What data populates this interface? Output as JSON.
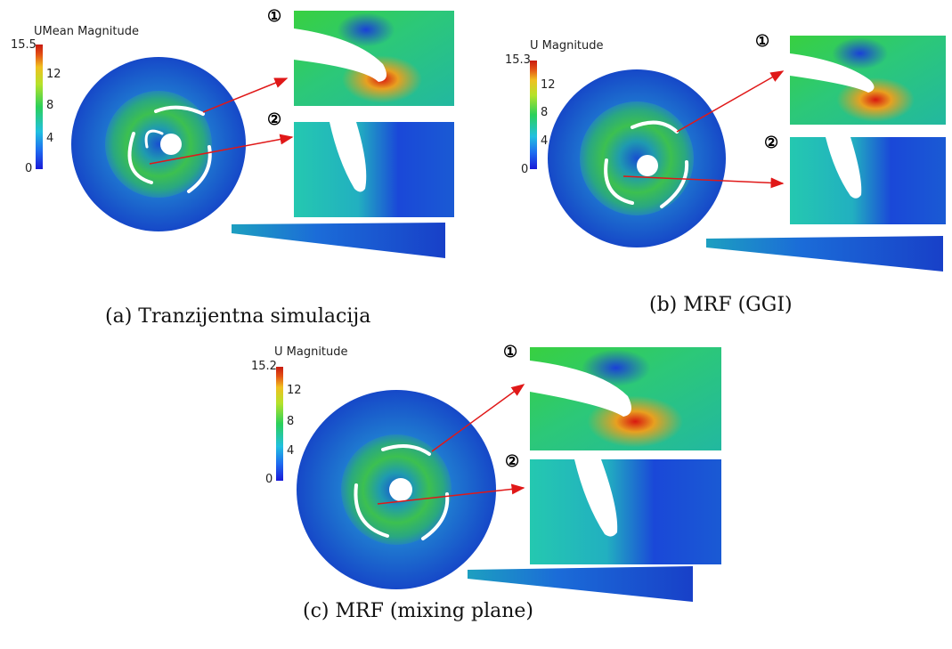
{
  "panels": [
    {
      "caption": "(a) Tranzijentna simulacija",
      "colorbar": {
        "title": "UMean Magnitude",
        "max": "15.5",
        "ticks": [
          "12",
          "8",
          "4",
          "0"
        ]
      },
      "markers": [
        "①",
        "②"
      ]
    },
    {
      "caption": "(b) MRF (GGI)",
      "colorbar": {
        "title": "U Magnitude",
        "max": "15.3",
        "ticks": [
          "12",
          "8",
          "4",
          "0"
        ]
      },
      "markers": [
        "①",
        "②"
      ]
    },
    {
      "caption": "(c) MRF (mixing plane)",
      "colorbar": {
        "title": "U Magnitude",
        "max": "15.2",
        "ticks": [
          "12",
          "8",
          "4",
          "0"
        ]
      },
      "markers": [
        "①",
        "②"
      ]
    }
  ],
  "colors": {
    "outer": "#1a5ad8",
    "inner": "#2aa86a",
    "zoom_high": "#2dcc4a",
    "zoom_low": "#1a3ed8",
    "stagnation": "#d82010",
    "arrow": "#e01818"
  }
}
